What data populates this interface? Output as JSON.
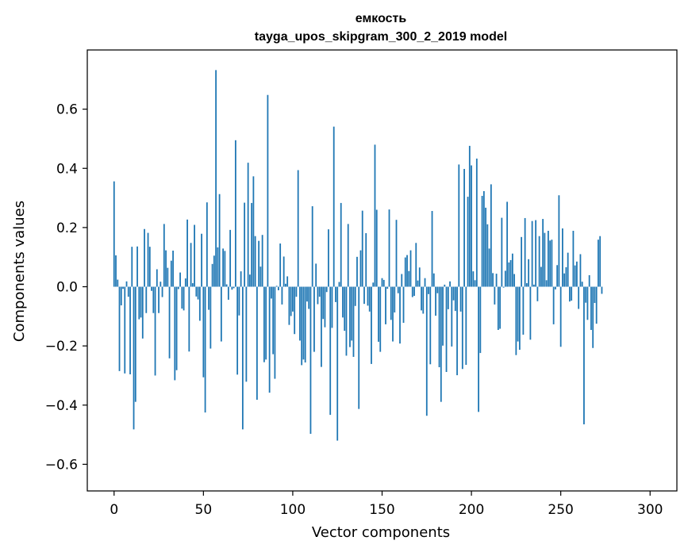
{
  "chart_data": {
    "type": "bar",
    "title": "емкость",
    "subtitle": "tayga_upos_skipgram_300_2_2019 model",
    "xlabel": "Vector components",
    "ylabel": "Components values",
    "xlim": [
      -15,
      315
    ],
    "ylim": [
      -0.69,
      0.8
    ],
    "xticks": [
      0,
      50,
      100,
      150,
      200,
      250,
      300
    ],
    "yticks": [
      -0.6,
      -0.4,
      -0.2,
      0.0,
      0.2,
      0.4,
      0.6
    ],
    "ytick_labels": [
      "−0.6",
      "−0.4",
      "−0.2",
      "0.0",
      "0.2",
      "0.4",
      "0.6"
    ],
    "grid": false,
    "bar_color": "#1f77b4",
    "values": [
      0.356,
      0.106,
      0.024,
      -0.285,
      -0.063,
      -0.007,
      -0.293,
      0.018,
      -0.034,
      -0.296,
      0.135,
      -0.482,
      -0.389,
      0.136,
      -0.11,
      -0.104,
      -0.175,
      0.195,
      -0.089,
      0.182,
      0.135,
      -0.014,
      -0.089,
      -0.3,
      0.059,
      -0.089,
      0.017,
      -0.035,
      0.212,
      0.123,
      0.064,
      -0.242,
      0.088,
      0.122,
      -0.316,
      -0.282,
      -0.008,
      0.048,
      -0.074,
      -0.08,
      0.028,
      0.227,
      -0.219,
      0.148,
      0.012,
      0.209,
      -0.033,
      -0.043,
      -0.115,
      0.179,
      -0.306,
      -0.425,
      0.285,
      -0.078,
      -0.209,
      0.077,
      0.105,
      0.732,
      0.133,
      0.313,
      -0.185,
      0.129,
      0.121,
      0.008,
      -0.044,
      0.192,
      -0.01,
      -0.005,
      0.495,
      -0.297,
      -0.097,
      0.052,
      -0.482,
      0.284,
      -0.321,
      0.419,
      0.041,
      0.283,
      0.373,
      0.171,
      -0.382,
      0.155,
      0.068,
      0.175,
      -0.255,
      -0.246,
      0.648,
      -0.358,
      -0.04,
      -0.228,
      -0.311,
      0.003,
      -0.012,
      0.146,
      -0.06,
      0.102,
      0.01,
      0.035,
      -0.129,
      -0.099,
      -0.084,
      -0.16,
      -0.034,
      0.394,
      -0.182,
      -0.265,
      -0.246,
      -0.256,
      -0.05,
      -0.075,
      -0.497,
      0.272,
      -0.22,
      0.078,
      -0.059,
      -0.034,
      -0.271,
      -0.109,
      -0.137,
      -0.018,
      0.194,
      -0.433,
      -0.139,
      0.541,
      -0.052,
      -0.52,
      0.016,
      0.283,
      -0.104,
      -0.149,
      -0.233,
      0.212,
      -0.204,
      -0.182,
      -0.237,
      -0.065,
      0.101,
      -0.413,
      0.123,
      0.257,
      -0.058,
      0.181,
      -0.064,
      -0.084,
      -0.261,
      0.014,
      0.48,
      0.26,
      -0.186,
      -0.22,
      0.029,
      0.023,
      -0.127,
      -0.007,
      0.261,
      -0.112,
      -0.185,
      -0.087,
      0.226,
      -0.022,
      -0.192,
      0.043,
      -0.122,
      0.099,
      0.107,
      0.053,
      0.123,
      -0.035,
      -0.031,
      0.148,
      0.021,
      0.065,
      -0.08,
      -0.091,
      0.029,
      -0.436,
      -0.025,
      -0.262,
      0.256,
      0.045,
      -0.098,
      -0.022,
      -0.272,
      -0.389,
      -0.199,
      0.007,
      -0.288,
      -0.076,
      0.018,
      -0.202,
      -0.046,
      -0.082,
      -0.299,
      0.413,
      -0.084,
      -0.278,
      0.398,
      -0.264,
      0.304,
      0.476,
      0.41,
      0.052,
      0.022,
      0.433,
      -0.423,
      -0.224,
      0.307,
      0.323,
      0.267,
      0.211,
      0.129,
      0.346,
      0.046,
      -0.06,
      0.044,
      -0.146,
      -0.142,
      0.233,
      -0.003,
      0.054,
      0.287,
      0.082,
      0.09,
      0.112,
      0.043,
      -0.231,
      -0.185,
      -0.213,
      0.168,
      -0.162,
      0.232,
      0.012,
      0.093,
      -0.179,
      0.222,
      0.007,
      0.225,
      -0.049,
      0.171,
      0.067,
      0.229,
      0.182,
      0.022,
      0.189,
      0.156,
      0.159,
      -0.127,
      -0.009,
      0.073,
      0.309,
      -0.203,
      0.197,
      0.045,
      0.066,
      0.115,
      -0.05,
      -0.047,
      0.189,
      0.072,
      0.085,
      -0.075,
      0.11,
      0.017,
      -0.465,
      -0.054,
      -0.112,
      0.039,
      -0.146,
      -0.207,
      -0.055,
      -0.125,
      0.159,
      0.171,
      -0.024
    ]
  }
}
